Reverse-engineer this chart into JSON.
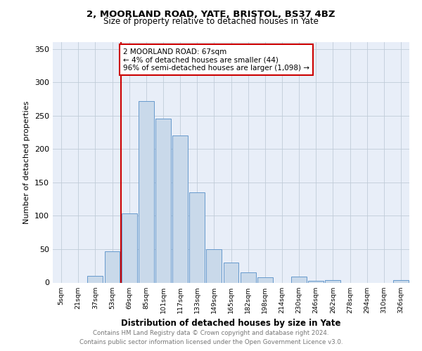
{
  "title": "2, MOORLAND ROAD, YATE, BRISTOL, BS37 4BZ",
  "subtitle": "Size of property relative to detached houses in Yate",
  "xlabel": "Distribution of detached houses by size in Yate",
  "ylabel": "Number of detached properties",
  "bar_color": "#c9d9ea",
  "bar_edge_color": "#6699cc",
  "background_color": "#e8eef8",
  "categories": [
    "5sqm",
    "21sqm",
    "37sqm",
    "53sqm",
    "69sqm",
    "85sqm",
    "101sqm",
    "117sqm",
    "133sqm",
    "149sqm",
    "165sqm",
    "182sqm",
    "198sqm",
    "214sqm",
    "230sqm",
    "246sqm",
    "262sqm",
    "278sqm",
    "294sqm",
    "310sqm",
    "326sqm"
  ],
  "values": [
    0,
    0,
    10,
    47,
    104,
    272,
    245,
    220,
    135,
    50,
    30,
    15,
    8,
    0,
    9,
    3,
    4,
    0,
    0,
    0,
    4
  ],
  "ylim": [
    0,
    360
  ],
  "yticks": [
    0,
    50,
    100,
    150,
    200,
    250,
    300,
    350
  ],
  "property_line_color": "#cc0000",
  "annotation_text": "2 MOORLAND ROAD: 67sqm\n← 4% of detached houses are smaller (44)\n96% of semi-detached houses are larger (1,098) →",
  "annotation_box_color": "white",
  "annotation_box_edge_color": "#cc0000",
  "footer_text": "Contains HM Land Registry data © Crown copyright and database right 2024.\nContains public sector information licensed under the Open Government Licence v3.0.",
  "grid_color": "#c0ccd8"
}
